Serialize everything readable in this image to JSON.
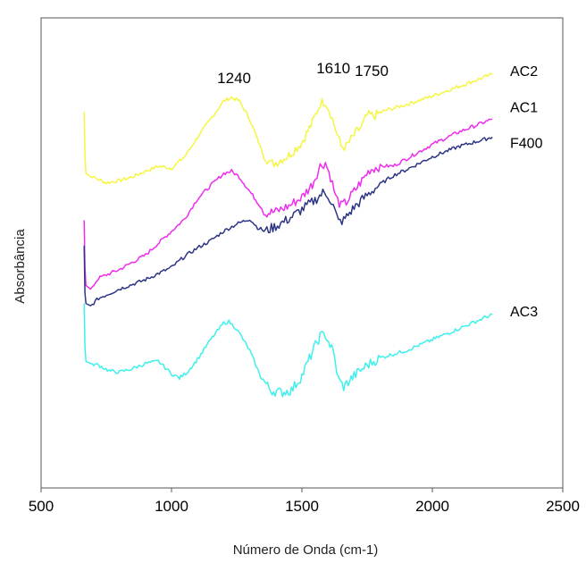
{
  "chart_data": {
    "type": "line",
    "xlabel": "Número de Onda (cm-1)",
    "ylabel": "Absorbância",
    "xlim": [
      500,
      2500
    ],
    "xticks": [
      500,
      1000,
      1500,
      2000,
      2500
    ],
    "grid": false,
    "y_ticks_shown": false,
    "annotations": [
      {
        "text": "1240",
        "x": 1240
      },
      {
        "text": "1610",
        "x": 1610
      },
      {
        "text": "1750",
        "x": 1750
      }
    ],
    "series": [
      {
        "name": "AC2",
        "color": "#f5f542",
        "points": [
          [
            665,
            5.2
          ],
          [
            668,
            4.6
          ],
          [
            672,
            4.35
          ],
          [
            690,
            4.3
          ],
          [
            710,
            4.28
          ],
          [
            750,
            4.22
          ],
          [
            800,
            4.25
          ],
          [
            850,
            4.3
          ],
          [
            900,
            4.38
          ],
          [
            950,
            4.45
          ],
          [
            1000,
            4.42
          ],
          [
            1050,
            4.58
          ],
          [
            1100,
            4.85
          ],
          [
            1150,
            5.1
          ],
          [
            1200,
            5.35
          ],
          [
            1230,
            5.4
          ],
          [
            1260,
            5.35
          ],
          [
            1300,
            5.1
          ],
          [
            1340,
            4.72
          ],
          [
            1360,
            4.58
          ],
          [
            1380,
            4.48
          ],
          [
            1400,
            4.5
          ],
          [
            1450,
            4.6
          ],
          [
            1500,
            4.78
          ],
          [
            1540,
            5.05
          ],
          [
            1570,
            5.32
          ],
          [
            1590,
            5.35
          ],
          [
            1610,
            5.18
          ],
          [
            1630,
            4.95
          ],
          [
            1650,
            4.72
          ],
          [
            1670,
            4.72
          ],
          [
            1700,
            4.88
          ],
          [
            1730,
            5.0
          ],
          [
            1750,
            5.15
          ],
          [
            1780,
            5.15
          ],
          [
            1820,
            5.22
          ],
          [
            1900,
            5.3
          ],
          [
            2000,
            5.42
          ],
          [
            2100,
            5.55
          ],
          [
            2230,
            5.72
          ]
        ]
      },
      {
        "name": "AC1",
        "color": "#ee2cee",
        "points": [
          [
            665,
            3.7
          ],
          [
            668,
            3.05
          ],
          [
            672,
            2.8
          ],
          [
            690,
            2.75
          ],
          [
            720,
            2.9
          ],
          [
            800,
            3.02
          ],
          [
            900,
            3.22
          ],
          [
            1000,
            3.55
          ],
          [
            1050,
            3.72
          ],
          [
            1100,
            4.0
          ],
          [
            1150,
            4.18
          ],
          [
            1200,
            4.35
          ],
          [
            1230,
            4.38
          ],
          [
            1260,
            4.3
          ],
          [
            1300,
            4.1
          ],
          [
            1340,
            3.9
          ],
          [
            1360,
            3.8
          ],
          [
            1400,
            3.82
          ],
          [
            1450,
            3.9
          ],
          [
            1500,
            4.02
          ],
          [
            1540,
            4.2
          ],
          [
            1570,
            4.45
          ],
          [
            1590,
            4.5
          ],
          [
            1610,
            4.3
          ],
          [
            1630,
            4.02
          ],
          [
            1650,
            3.9
          ],
          [
            1670,
            3.95
          ],
          [
            1700,
            4.1
          ],
          [
            1730,
            4.25
          ],
          [
            1760,
            4.4
          ],
          [
            1800,
            4.45
          ],
          [
            1850,
            4.45
          ],
          [
            1900,
            4.55
          ],
          [
            2000,
            4.75
          ],
          [
            2100,
            4.92
          ],
          [
            2230,
            5.1
          ]
        ]
      },
      {
        "name": "F400",
        "color": "#2e3585",
        "points": [
          [
            665,
            3.35
          ],
          [
            668,
            2.7
          ],
          [
            672,
            2.55
          ],
          [
            690,
            2.52
          ],
          [
            720,
            2.62
          ],
          [
            800,
            2.75
          ],
          [
            900,
            2.88
          ],
          [
            1000,
            3.05
          ],
          [
            1050,
            3.2
          ],
          [
            1100,
            3.32
          ],
          [
            1150,
            3.42
          ],
          [
            1200,
            3.55
          ],
          [
            1250,
            3.65
          ],
          [
            1300,
            3.72
          ],
          [
            1330,
            3.6
          ],
          [
            1360,
            3.55
          ],
          [
            1400,
            3.62
          ],
          [
            1450,
            3.72
          ],
          [
            1500,
            3.85
          ],
          [
            1550,
            3.98
          ],
          [
            1580,
            4.08
          ],
          [
            1600,
            4.05
          ],
          [
            1620,
            3.9
          ],
          [
            1640,
            3.68
          ],
          [
            1660,
            3.7
          ],
          [
            1700,
            3.88
          ],
          [
            1750,
            4.05
          ],
          [
            1800,
            4.2
          ],
          [
            1850,
            4.32
          ],
          [
            1900,
            4.4
          ],
          [
            2000,
            4.58
          ],
          [
            2100,
            4.72
          ],
          [
            2230,
            4.85
          ]
        ]
      },
      {
        "name": "AC3",
        "color": "#3ff0ec",
        "points": [
          [
            665,
            2.55
          ],
          [
            668,
            1.95
          ],
          [
            672,
            1.75
          ],
          [
            690,
            1.72
          ],
          [
            720,
            1.7
          ],
          [
            760,
            1.62
          ],
          [
            800,
            1.6
          ],
          [
            850,
            1.65
          ],
          [
            900,
            1.72
          ],
          [
            950,
            1.75
          ],
          [
            1000,
            1.58
          ],
          [
            1030,
            1.52
          ],
          [
            1060,
            1.6
          ],
          [
            1100,
            1.78
          ],
          [
            1150,
            2.05
          ],
          [
            1200,
            2.28
          ],
          [
            1220,
            2.3
          ],
          [
            1250,
            2.2
          ],
          [
            1300,
            1.9
          ],
          [
            1340,
            1.55
          ],
          [
            1380,
            1.35
          ],
          [
            1420,
            1.32
          ],
          [
            1460,
            1.35
          ],
          [
            1500,
            1.55
          ],
          [
            1540,
            1.88
          ],
          [
            1570,
            2.1
          ],
          [
            1590,
            2.12
          ],
          [
            1620,
            1.88
          ],
          [
            1640,
            1.5
          ],
          [
            1660,
            1.4
          ],
          [
            1700,
            1.55
          ],
          [
            1750,
            1.7
          ],
          [
            1800,
            1.8
          ],
          [
            1850,
            1.85
          ],
          [
            1900,
            1.9
          ],
          [
            2000,
            2.05
          ],
          [
            2100,
            2.2
          ],
          [
            2230,
            2.4
          ]
        ]
      }
    ]
  }
}
